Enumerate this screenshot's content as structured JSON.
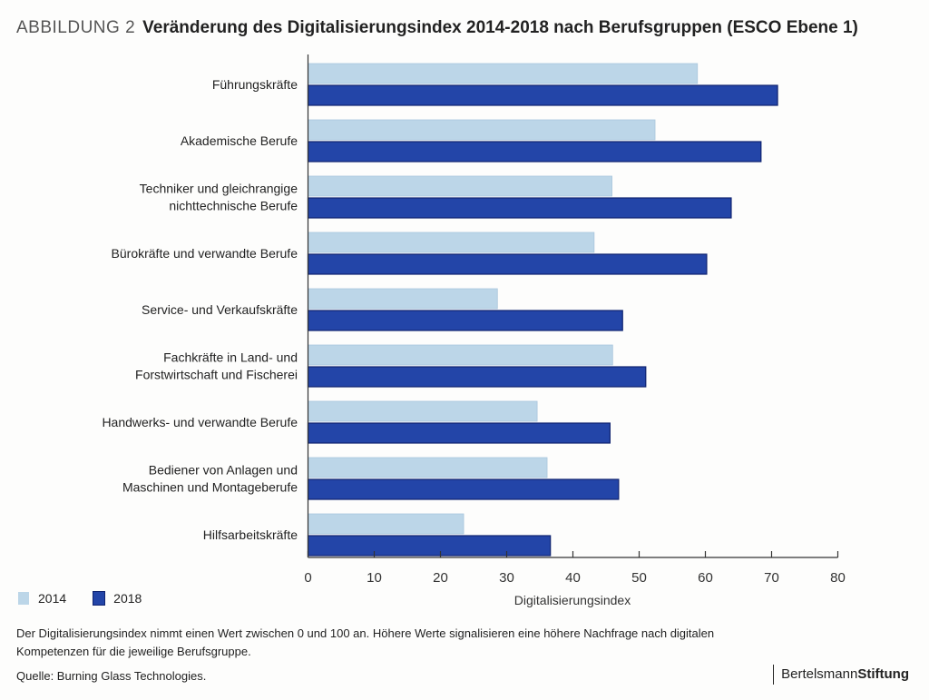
{
  "header": {
    "figure_label": "ABBILDUNG 2",
    "title": "Veränderung des Digitalisierungsindex 2014-2018 nach Berufsgruppen (ESCO Ebene 1)"
  },
  "chart_data": {
    "type": "bar",
    "orientation": "horizontal",
    "title": "Veränderung des Digitalisierungsindex 2014-2018 nach Berufsgruppen (ESCO Ebene 1)",
    "xlabel": "Digitalisierungsindex",
    "ylabel": "",
    "xlim": [
      0,
      80
    ],
    "xticks": [
      0,
      10,
      20,
      30,
      40,
      50,
      60,
      70,
      80
    ],
    "grid": false,
    "legend_position": "bottom-left",
    "categories": [
      [
        "Führungskräfte"
      ],
      [
        "Akademische Berufe"
      ],
      [
        "Techniker und gleichrangige",
        "nichttechnische Berufe"
      ],
      [
        "Bürokräfte und verwandte Berufe"
      ],
      [
        "Service- und Verkaufskräfte"
      ],
      [
        "Fachkräfte in Land- und",
        "Forstwirtschaft und Fischerei"
      ],
      [
        "Handwerks- und verwandte Berufe"
      ],
      [
        "Bediener von Anlagen und",
        "Maschinen und Montageberufe"
      ],
      [
        "Hilfsarbeitskräfte"
      ]
    ],
    "series": [
      {
        "name": "2014",
        "color": "#bcd6e8",
        "values": [
          58.8,
          52.4,
          45.9,
          43.2,
          28.6,
          46.0,
          34.6,
          36.1,
          23.5
        ]
      },
      {
        "name": "2018",
        "color": "#2345a8",
        "values": [
          70.9,
          68.4,
          63.9,
          60.2,
          47.5,
          51.0,
          45.6,
          46.9,
          36.6
        ]
      }
    ]
  },
  "legend": [
    {
      "label": "2014",
      "color": "#bcd6e8"
    },
    {
      "label": "2018",
      "color": "#2345a8"
    }
  ],
  "footer": {
    "note": "Der Digitalisierungsindex nimmt einen Wert zwischen 0 und 100 an. Höhere Werte signalisieren eine höhere Nachfrage nach digitalen Kompetenzen für die jeweilige Berufsgruppe.",
    "source": "Quelle: Burning Glass Technologies.",
    "brand_regular": "Bertelsmann",
    "brand_bold": "Stiftung"
  }
}
